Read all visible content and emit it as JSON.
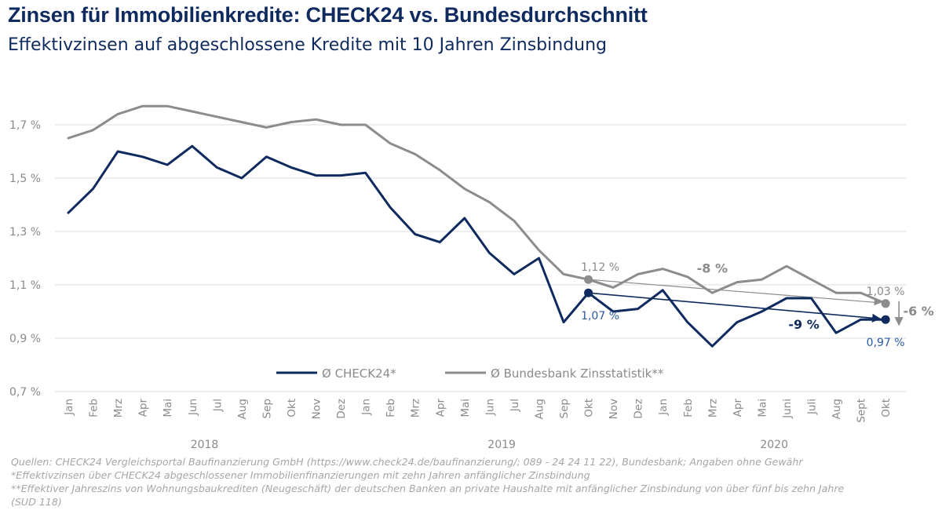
{
  "title": "Zinsen für Immobilienkredite: CHECK24 vs. Bundesdurchschnitt",
  "subtitle": "Effektivzinsen auf abgeschlossene Kredite mit 10 Jahren Zinsbindung",
  "chart_data": {
    "type": "line",
    "x": [
      "Jan",
      "Feb",
      "Mrz",
      "Apr",
      "Mai",
      "Jun",
      "Jul",
      "Aug",
      "Sep",
      "Okt",
      "Nov",
      "Dez",
      "Jan",
      "Feb",
      "Mrz",
      "Apr",
      "Mai",
      "Jun",
      "Jul",
      "Aug",
      "Sep",
      "Okt",
      "Nov",
      "Dez",
      "Jan",
      "Feb",
      "Mrz",
      "Apr",
      "Mai",
      "Juni",
      "Juli",
      "Aug",
      "Sept",
      "Okt"
    ],
    "years": [
      {
        "label": "2018",
        "start_index": 0,
        "end_index": 11
      },
      {
        "label": "2019",
        "start_index": 12,
        "end_index": 23
      },
      {
        "label": "2020",
        "start_index": 24,
        "end_index": 33
      }
    ],
    "ylim": [
      0.7,
      1.9
    ],
    "yticks": [
      {
        "value": 0.7,
        "label": "0,7 %"
      },
      {
        "value": 0.9,
        "label": "0,9 %"
      },
      {
        "value": 1.1,
        "label": "1,1 %"
      },
      {
        "value": 1.3,
        "label": "1,3 %"
      },
      {
        "value": 1.5,
        "label": "1,5 %"
      },
      {
        "value": 1.7,
        "label": "1,7 %"
      }
    ],
    "grid": true,
    "series": [
      {
        "name": "Ø CHECK24*",
        "color": "#0f2a5e",
        "values": [
          1.37,
          1.46,
          1.6,
          1.58,
          1.55,
          1.62,
          1.54,
          1.5,
          1.58,
          1.54,
          1.51,
          1.51,
          1.52,
          1.39,
          1.29,
          1.26,
          1.35,
          1.22,
          1.14,
          1.2,
          0.96,
          1.07,
          1.0,
          1.01,
          1.08,
          0.96,
          0.87,
          0.96,
          1.0,
          1.05,
          1.05,
          0.92,
          0.97,
          0.97
        ]
      },
      {
        "name": "Ø Bundesbank Zinsstatistik**",
        "color": "#8c8c8c",
        "values": [
          1.65,
          1.68,
          1.74,
          1.77,
          1.77,
          1.75,
          1.73,
          1.71,
          1.69,
          1.71,
          1.72,
          1.7,
          1.7,
          1.63,
          1.59,
          1.53,
          1.46,
          1.41,
          1.34,
          1.23,
          1.14,
          1.12,
          1.09,
          1.14,
          1.16,
          1.13,
          1.07,
          1.11,
          1.12,
          1.17,
          1.12,
          1.07,
          1.07,
          1.03
        ]
      }
    ],
    "legend_position": "bottom-center",
    "annotations": [
      {
        "series": 1,
        "index": 21,
        "label": "1,12 %"
      },
      {
        "series": 0,
        "index": 21,
        "label": "1,07 %"
      },
      {
        "series": 1,
        "index": 33,
        "label": "1,03 %"
      },
      {
        "series": 0,
        "index": 33,
        "label": "0,97 %"
      },
      {
        "trend_series": 1,
        "from_index": 21,
        "to_index": 33,
        "label": "-8 %"
      },
      {
        "trend_series": 0,
        "from_index": 21,
        "to_index": 33,
        "label": "-9 %"
      },
      {
        "drop_between_series": [
          1,
          0
        ],
        "index": 33,
        "label": "-6 %"
      }
    ]
  },
  "footnotes": [
    "Quellen: CHECK24 Vergleichsportal Baufinanzierung GmbH (https://www.check24.de/baufinanzierung/;  089 - 24 24 11 22), Bundesbank; Angaben ohne Gewähr",
    "*Effektivzinsen über CHECK24 abgeschlossener Immobilienfinanzierungen mit zehn Jahren anfänglicher Zinsbindung",
    "**Effektiver Jahreszins von Wohnungsbaukrediten (Neugeschäft) der deutschen Banken an private Haushalte mit anfänglicher Zinsbindung von über fünf bis zehn Jahre",
    " (SUD 118)"
  ]
}
